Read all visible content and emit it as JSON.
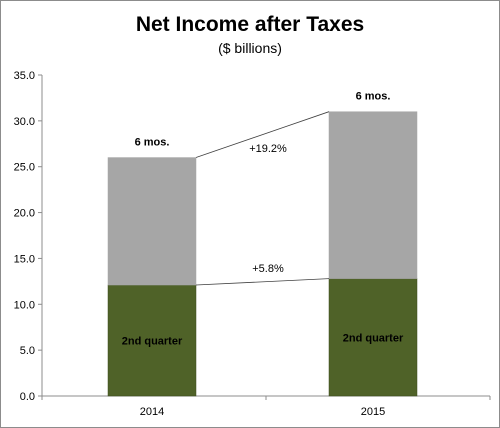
{
  "chart_data": {
    "type": "bar",
    "stacked": true,
    "title": "Net Income after Taxes",
    "subtitle": "($ billions)",
    "categories": [
      "2014",
      "2015"
    ],
    "series": [
      {
        "name": "2nd quarter",
        "values": [
          12.1,
          12.8
        ],
        "color": "#4f6228"
      },
      {
        "name": "6 mos.",
        "values": [
          13.9,
          18.2
        ],
        "color": "#a6a6a6"
      }
    ],
    "totals": [
      26.0,
      31.0
    ],
    "ylim": [
      0,
      35
    ],
    "yticks": [
      "0.0",
      "5.0",
      "10.0",
      "15.0",
      "20.0",
      "25.0",
      "30.0",
      "35.0"
    ],
    "grid": false,
    "segment_labels": [
      "2nd quarter",
      "2nd quarter"
    ],
    "top_labels": [
      "6 mos.",
      "6 mos."
    ],
    "annotations": [
      {
        "text": "+19.2%",
        "from_value": 26.0,
        "to_value": 31.0
      },
      {
        "text": "+5.8%",
        "from_value": 12.1,
        "to_value": 12.8
      }
    ]
  }
}
